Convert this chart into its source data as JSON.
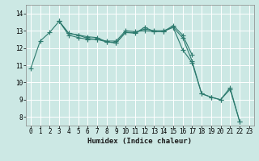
{
  "xlabel": "Humidex (Indice chaleur)",
  "background_color": "#cce8e4",
  "line_color": "#2d7a6e",
  "grid_color": "#ffffff",
  "xlim": [
    -0.5,
    23.5
  ],
  "ylim": [
    7.5,
    14.5
  ],
  "yticks": [
    8,
    9,
    10,
    11,
    12,
    13,
    14
  ],
  "xticks": [
    0,
    1,
    2,
    3,
    4,
    5,
    6,
    7,
    8,
    9,
    10,
    11,
    12,
    13,
    14,
    15,
    16,
    17,
    18,
    19,
    20,
    21,
    22,
    23
  ],
  "series1": {
    "x": [
      0,
      1,
      2,
      3,
      4,
      5,
      6,
      7,
      8,
      9,
      10,
      11,
      12,
      13,
      14,
      15,
      16,
      17,
      18,
      19,
      20,
      21,
      22
    ],
    "y": [
      10.8,
      12.4,
      12.9,
      13.55,
      12.85,
      12.75,
      12.65,
      12.6,
      12.35,
      12.3,
      12.9,
      12.85,
      13.2,
      12.95,
      12.95,
      13.2,
      12.6,
      11.25,
      9.35,
      9.15,
      9.0,
      9.6,
      7.75
    ]
  },
  "series2": {
    "x": [
      3,
      4,
      5,
      6,
      7,
      8,
      9,
      10,
      11,
      12,
      13,
      14,
      15,
      16,
      17
    ],
    "y": [
      13.55,
      12.85,
      12.75,
      12.55,
      12.5,
      12.4,
      12.4,
      13.0,
      12.95,
      13.0,
      12.95,
      12.95,
      13.3,
      12.75,
      11.6
    ]
  },
  "series3": {
    "x": [
      3,
      4,
      5,
      6,
      7,
      8,
      9,
      10,
      11,
      12,
      13,
      14,
      15,
      16,
      17,
      18,
      19,
      20,
      21,
      22
    ],
    "y": [
      13.55,
      12.75,
      12.6,
      12.5,
      12.5,
      12.35,
      12.3,
      12.9,
      12.9,
      13.1,
      13.0,
      13.0,
      13.2,
      11.9,
      11.15,
      9.35,
      9.15,
      9.0,
      9.7,
      7.75
    ]
  },
  "line_width": 0.8,
  "marker_size": 2.0,
  "font_size_label": 6.5,
  "font_size_tick": 5.5
}
